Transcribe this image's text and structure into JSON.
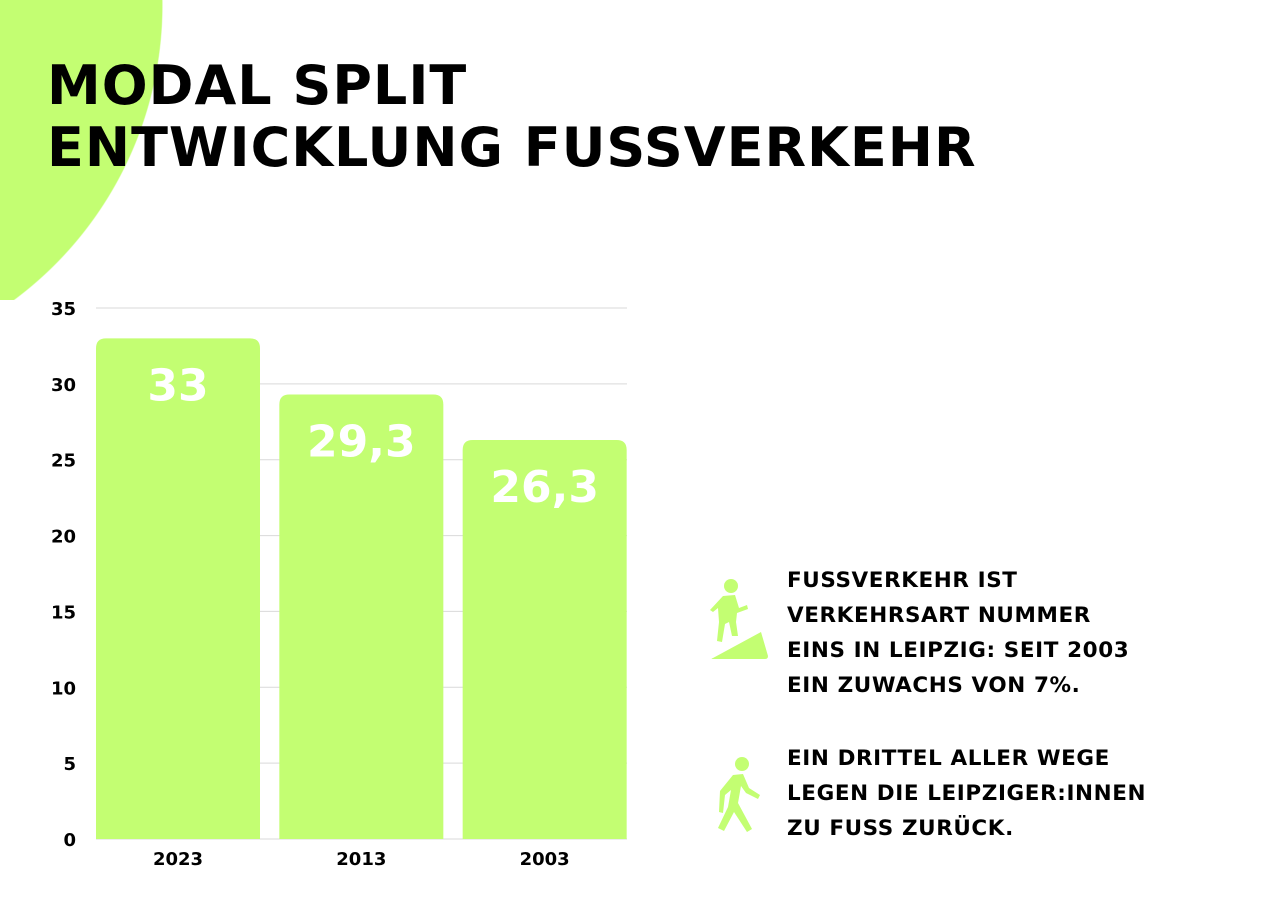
{
  "title": {
    "line1": "MODAL SPLIT",
    "line2": "ENTWICKLUNG FUSSVERKEHR"
  },
  "colors": {
    "accent": "#c3fe72",
    "text": "#000000",
    "bar_label": "#ffffff",
    "grid": "#d9d9d9"
  },
  "chart_data": {
    "type": "bar",
    "categories": [
      "2023",
      "2013",
      "2003"
    ],
    "values": [
      33,
      29.3,
      26.3
    ],
    "data_labels": [
      "33",
      "29,3",
      "26,3"
    ],
    "ylim": [
      0,
      35
    ],
    "yticks": [
      "0",
      "5",
      "10",
      "15",
      "20",
      "25",
      "30",
      "35"
    ],
    "grid": true,
    "title": "",
    "xlabel": "",
    "ylabel": ""
  },
  "info": [
    {
      "icon": "person-climbing-stairs-icon",
      "text": "FUSSVERKEHR IST\nVERKEHRSART NUMMER\nEINS IN LEIPZIG: SEIT 2003\nEIN ZUWACHS VON 7%."
    },
    {
      "icon": "person-walking-icon",
      "text": "EIN DRITTEL ALLER WEGE\nLEGEN DIE LEIPZIGER:INNEN\nZU FUSS ZURÜCK."
    }
  ]
}
